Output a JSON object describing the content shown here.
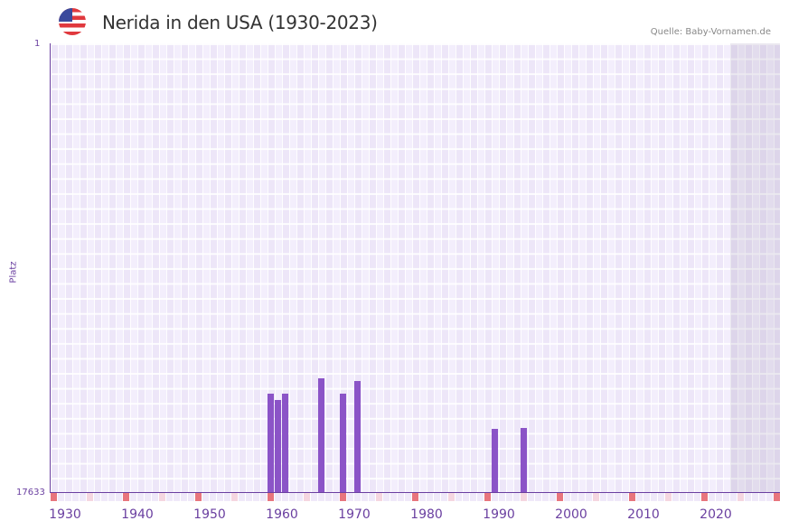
{
  "header": {
    "title": "Nerida in den USA (1930-2023)",
    "source": "Quelle: Baby-Vornamen.de",
    "flag_icon": "us-flag-icon"
  },
  "colors": {
    "bar": "#8b54c7",
    "axis": "#6a3fa0",
    "decade_marker": "#e8757d",
    "half_decade_marker": "#f5d6e0",
    "plot_bg": "#f1ecfa"
  },
  "chart_data": {
    "type": "bar",
    "title": "Nerida in den USA (1930-2023)",
    "xlabel": "",
    "ylabel": "Platz",
    "y_inverted": true,
    "ylim": [
      1,
      17633
    ],
    "y_ticks": [
      "1",
      "17633"
    ],
    "x_range": [
      1928,
      2028
    ],
    "x_ticks": [
      "1930",
      "1940",
      "1950",
      "1960",
      "1970",
      "1980",
      "1990",
      "2000",
      "2010",
      "2020"
    ],
    "grid": true,
    "shaded_region": [
      2022,
      2028
    ],
    "categories": [
      "1958",
      "1959",
      "1960",
      "1965",
      "1968",
      "1970",
      "1989",
      "1993"
    ],
    "values": [
      13766,
      14014,
      13766,
      13163,
      13766,
      13269,
      15150,
      15114
    ]
  },
  "axis": {
    "y_top": "1",
    "y_bottom": "17633",
    "y_title": "Platz",
    "x_labels": [
      "1930",
      "1940",
      "1950",
      "1960",
      "1970",
      "1980",
      "1990",
      "2000",
      "2010",
      "2020"
    ]
  }
}
